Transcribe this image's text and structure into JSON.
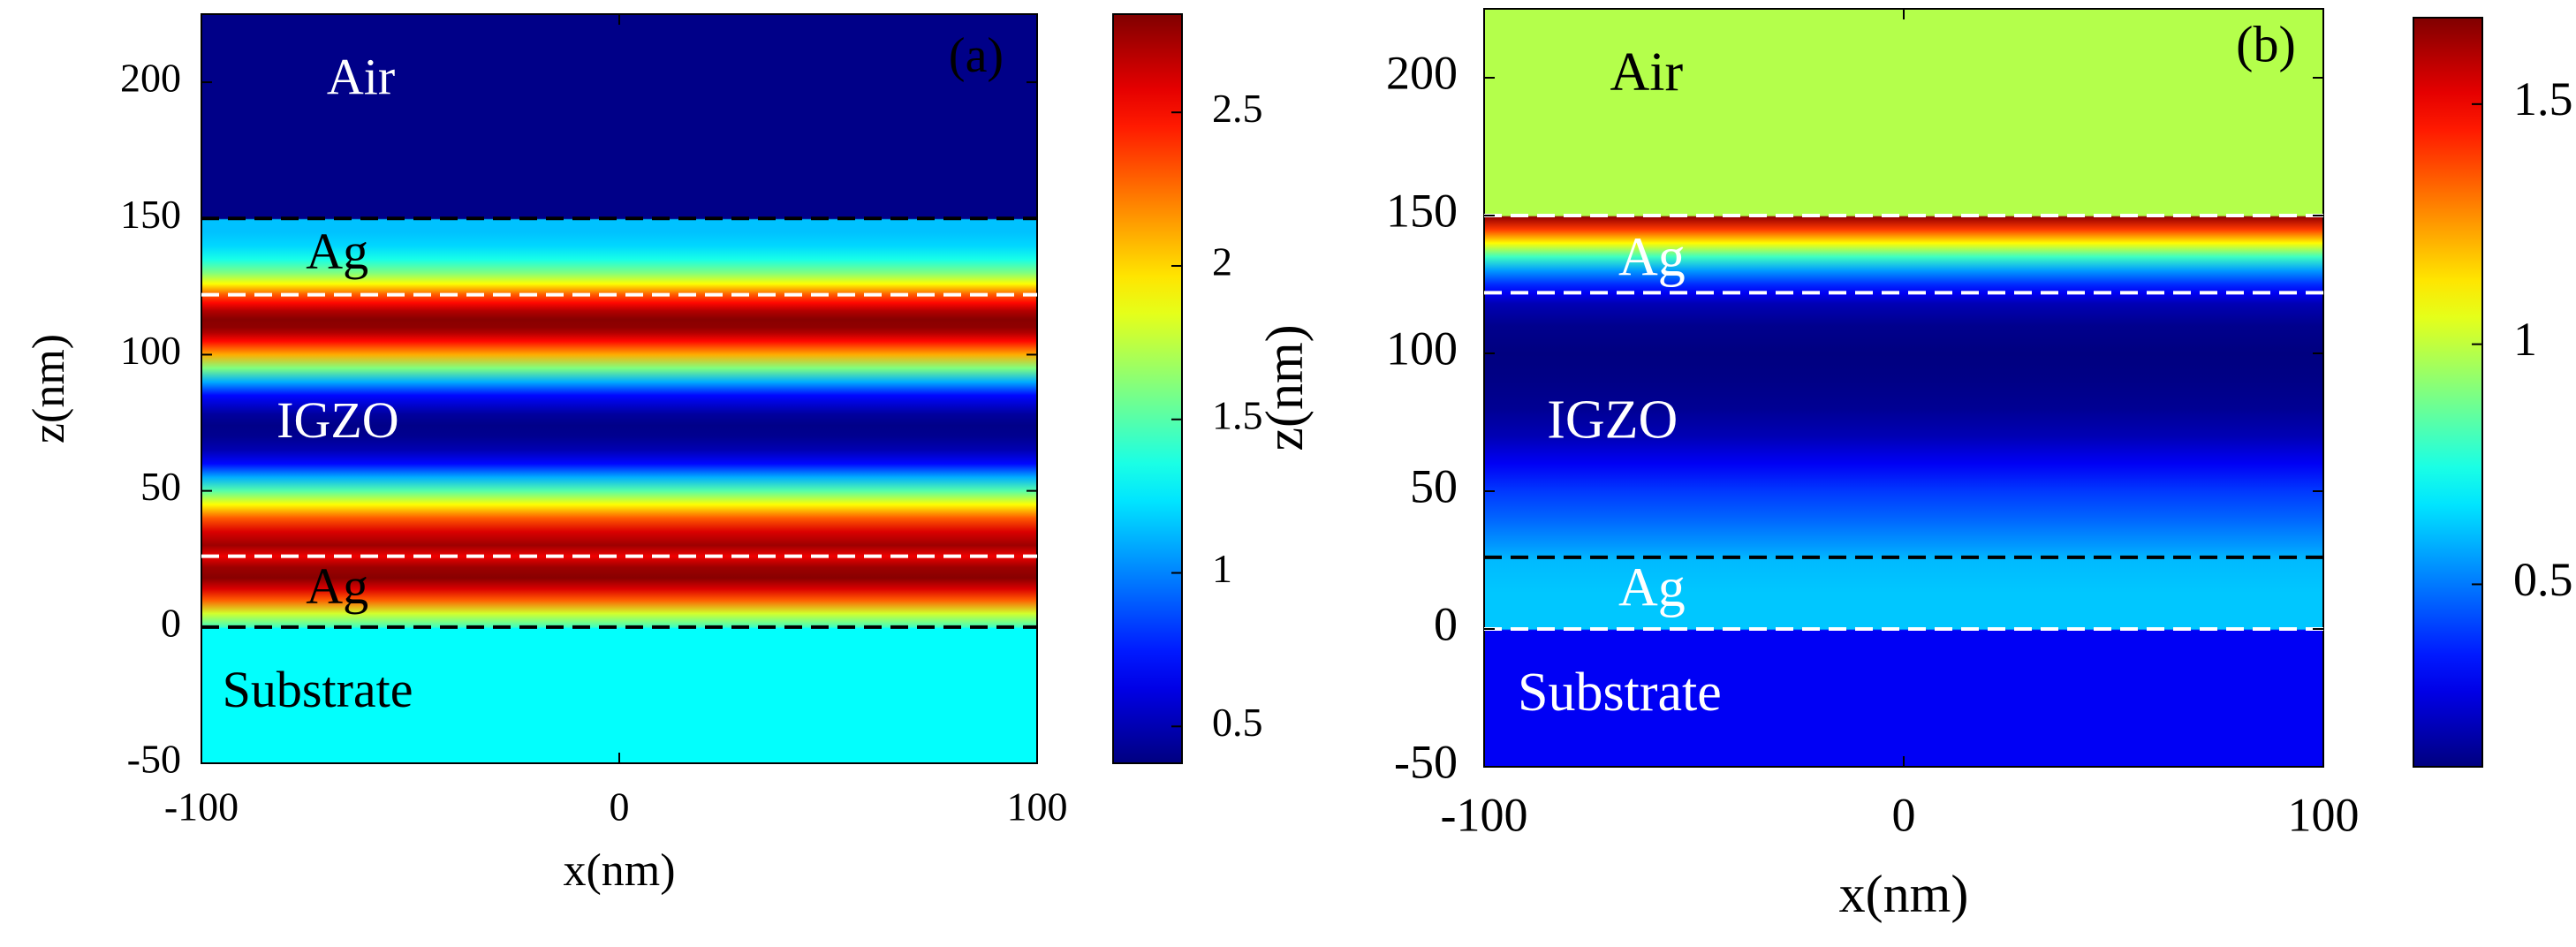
{
  "chart_data": [
    {
      "type": "heatmap",
      "panel_label": "(a)",
      "xlabel": "x(nm)",
      "ylabel": "z(nm)",
      "xlim": [
        -100,
        100
      ],
      "ylim": [
        -50,
        225
      ],
      "x_ticks": [
        -100,
        0,
        100
      ],
      "y_ticks": [
        -50,
        0,
        50,
        100,
        150,
        200
      ],
      "colorbar": {
        "range": [
          0.38,
          2.82
        ],
        "ticks": [
          0.5,
          1,
          1.5,
          2,
          2.5
        ]
      },
      "boundaries": [
        {
          "z": 150,
          "style": "black-dashed"
        },
        {
          "z": 122,
          "style": "white-dashed"
        },
        {
          "z": 26,
          "style": "white-dashed"
        },
        {
          "z": 0,
          "style": "black-dashed"
        }
      ],
      "regions": [
        {
          "label": "Air",
          "z_center": 200,
          "x": -70,
          "text_color": "#ffffff"
        },
        {
          "label": "Ag",
          "z_center": 136,
          "x": -75,
          "text_color": "#000000"
        },
        {
          "label": "IGZO",
          "z_center": 74,
          "x": -82,
          "text_color": "#ffffff"
        },
        {
          "label": "Ag",
          "z_center": 13,
          "x": -75,
          "text_color": "#000000"
        },
        {
          "label": "Substrate",
          "z_center": -25,
          "x": -95,
          "text_color": "#000000"
        }
      ],
      "field_profile": {
        "z": [
          -50,
          -0.5,
          0,
          5,
          10,
          14,
          18,
          22,
          26,
          30,
          35,
          40,
          45,
          50,
          55,
          60,
          65,
          70,
          74,
          78,
          85,
          90,
          95,
          100,
          105,
          108,
          110,
          113,
          116,
          119,
          122,
          126,
          130,
          135,
          140,
          145,
          149.5,
          150,
          225
        ],
        "value": [
          1.3,
          1.3,
          1.45,
          1.8,
          2.3,
          2.6,
          2.8,
          2.75,
          2.55,
          2.75,
          2.6,
          2.3,
          1.9,
          1.5,
          1.1,
          0.7,
          0.5,
          0.42,
          0.4,
          0.45,
          0.7,
          1.1,
          1.6,
          2.1,
          2.5,
          2.7,
          2.78,
          2.8,
          2.7,
          2.5,
          2.3,
          1.9,
          1.6,
          1.35,
          1.2,
          1.15,
          1.15,
          0.4,
          0.4
        ]
      }
    },
    {
      "type": "heatmap",
      "panel_label": "(b)",
      "xlabel": "x(nm)",
      "ylabel": "z(nm)",
      "xlim": [
        -100,
        100
      ],
      "ylim": [
        -50,
        225
      ],
      "x_ticks": [
        -100,
        0,
        100
      ],
      "y_ticks": [
        -50,
        0,
        50,
        100,
        150,
        200
      ],
      "colorbar": {
        "range": [
          0.12,
          1.68
        ],
        "ticks": [
          0.5,
          1,
          1.5
        ]
      },
      "boundaries": [
        {
          "z": 150,
          "style": "white-dashed"
        },
        {
          "z": 122,
          "style": "white-dashed"
        },
        {
          "z": 26,
          "style": "black-dashed"
        },
        {
          "z": 0,
          "style": "white-dashed"
        }
      ],
      "regions": [
        {
          "label": "Air",
          "z_center": 200,
          "x": -70,
          "text_color": "#000000"
        },
        {
          "label": "Ag",
          "z_center": 133,
          "x": -68,
          "text_color": "#ffffff"
        },
        {
          "label": "IGZO",
          "z_center": 74,
          "x": -85,
          "text_color": "#ffffff"
        },
        {
          "label": "Ag",
          "z_center": 13,
          "x": -68,
          "text_color": "#ffffff"
        },
        {
          "label": "Substrate",
          "z_center": -25,
          "x": -92,
          "text_color": "#ffffff"
        }
      ],
      "field_profile": {
        "z": [
          -50,
          -0.5,
          0,
          13,
          25,
          30,
          40,
          50,
          60,
          70,
          80,
          90,
          100,
          110,
          118,
          122,
          125,
          130,
          135,
          140,
          145,
          149.5,
          150,
          225
        ],
        "value": [
          0.3,
          0.3,
          0.62,
          0.62,
          0.6,
          0.55,
          0.47,
          0.4,
          0.3,
          0.2,
          0.15,
          0.13,
          0.12,
          0.14,
          0.2,
          0.3,
          0.38,
          0.55,
          0.8,
          1.1,
          1.4,
          1.65,
          0.98,
          0.98
        ]
      }
    }
  ]
}
